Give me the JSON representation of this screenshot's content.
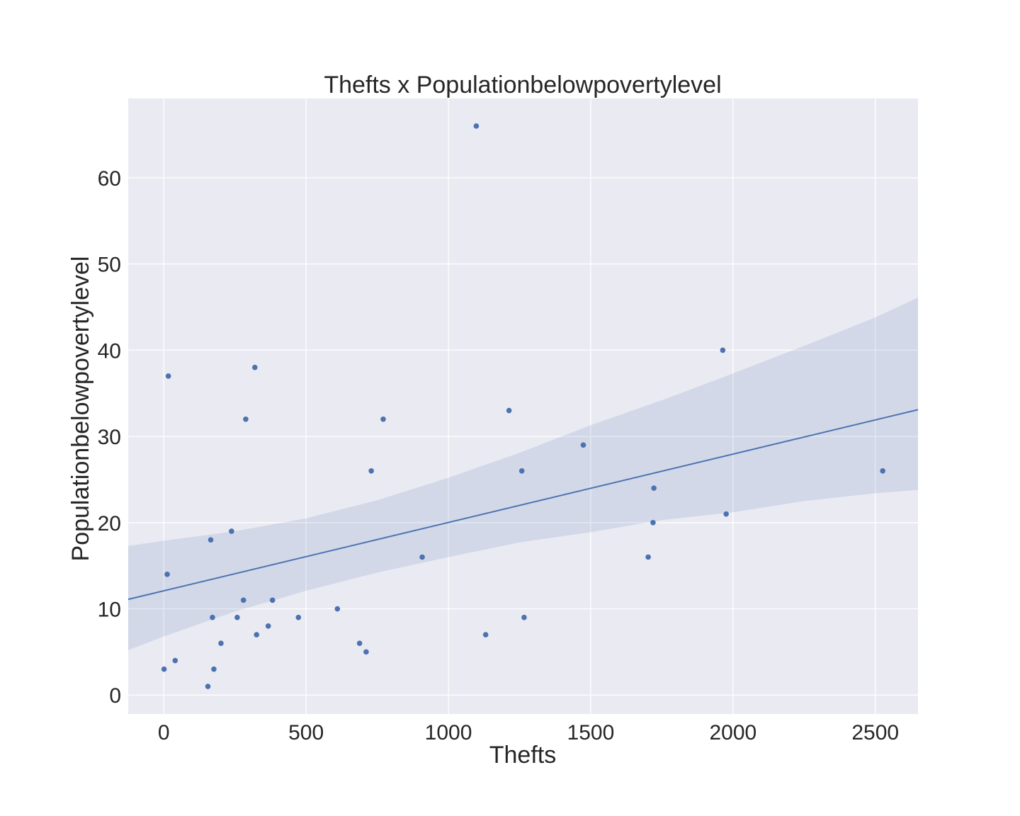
{
  "colors": {
    "plot_background": "#eaeaf2",
    "grid": "#ffffff",
    "point": "#4c72b0",
    "line": "#4c72b0",
    "band": "#4c72b0",
    "text": "#262626"
  },
  "chart_data": {
    "type": "scatter",
    "title": "Thefts x Populationbelowpovertylevel",
    "xlabel": "Thefts",
    "ylabel": "Populationbelowpovertylevel",
    "xlim": [
      -125,
      2650
    ],
    "ylim": [
      -2.2,
      69.2
    ],
    "xticks": [
      0,
      500,
      1000,
      1500,
      2000,
      2500
    ],
    "yticks": [
      0,
      10,
      20,
      30,
      40,
      50,
      60
    ],
    "xtick_labels": [
      "0",
      "500",
      "1000",
      "1500",
      "2000",
      "2500"
    ],
    "ytick_labels": [
      "0",
      "10",
      "20",
      "30",
      "40",
      "50",
      "60"
    ],
    "grid": true,
    "legend": "none",
    "points": [
      {
        "x": 1,
        "y": 3
      },
      {
        "x": 12,
        "y": 14
      },
      {
        "x": 16,
        "y": 37
      },
      {
        "x": 40,
        "y": 4
      },
      {
        "x": 155,
        "y": 1
      },
      {
        "x": 165,
        "y": 18
      },
      {
        "x": 171,
        "y": 9
      },
      {
        "x": 176,
        "y": 3
      },
      {
        "x": 201,
        "y": 6
      },
      {
        "x": 238,
        "y": 19
      },
      {
        "x": 258,
        "y": 9
      },
      {
        "x": 280,
        "y": 11
      },
      {
        "x": 288,
        "y": 32
      },
      {
        "x": 320,
        "y": 38
      },
      {
        "x": 326,
        "y": 7
      },
      {
        "x": 367,
        "y": 8
      },
      {
        "x": 382,
        "y": 11
      },
      {
        "x": 473,
        "y": 9
      },
      {
        "x": 610,
        "y": 10
      },
      {
        "x": 688,
        "y": 6
      },
      {
        "x": 711,
        "y": 5
      },
      {
        "x": 729,
        "y": 26
      },
      {
        "x": 771,
        "y": 32
      },
      {
        "x": 908,
        "y": 16
      },
      {
        "x": 1098,
        "y": 66
      },
      {
        "x": 1131,
        "y": 7
      },
      {
        "x": 1213,
        "y": 33
      },
      {
        "x": 1258,
        "y": 26
      },
      {
        "x": 1266,
        "y": 9
      },
      {
        "x": 1474,
        "y": 29
      },
      {
        "x": 1702,
        "y": 16
      },
      {
        "x": 1719,
        "y": 20
      },
      {
        "x": 1722,
        "y": 24
      },
      {
        "x": 1964,
        "y": 40
      },
      {
        "x": 1976,
        "y": 21
      },
      {
        "x": 2526,
        "y": 26
      }
    ],
    "regression": {
      "x": [
        -125,
        2650
      ],
      "y": [
        11.1,
        33.1
      ]
    },
    "confidence_band": {
      "x": [
        -125,
        0,
        250,
        500,
        750,
        1000,
        1250,
        1500,
        1750,
        2000,
        2250,
        2500,
        2650
      ],
      "upper": [
        17.3,
        17.9,
        19.0,
        20.5,
        22.6,
        25.2,
        28.1,
        31.3,
        34.2,
        37.3,
        40.5,
        43.8,
        46.1
      ],
      "lower": [
        5.2,
        6.8,
        9.7,
        12.1,
        14.2,
        16.0,
        17.7,
        18.9,
        20.3,
        21.2,
        22.5,
        23.4,
        23.8
      ]
    }
  }
}
